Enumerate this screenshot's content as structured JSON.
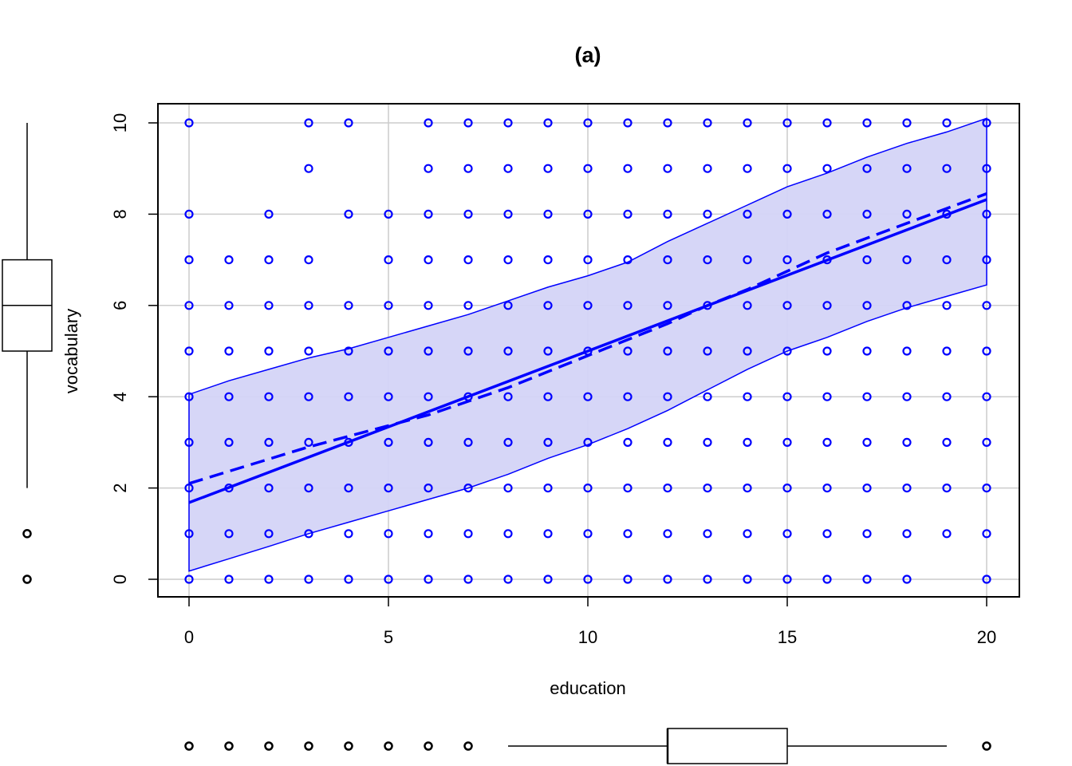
{
  "chart_data": {
    "type": "scatter",
    "title": "(a)",
    "xlabel": "education",
    "ylabel": "vocabulary",
    "xlim": [
      0,
      20
    ],
    "ylim": [
      0,
      10
    ],
    "grid": true,
    "xticks": [
      "0",
      "5",
      "10",
      "15",
      "20"
    ],
    "yticks": [
      "0",
      "2",
      "4",
      "6",
      "8",
      "10"
    ],
    "colors": {
      "points": "#0000ff",
      "band_fill": "#d4d4f7",
      "band_line": "#0000ff",
      "grid": "#cccccc",
      "axis": "#000000"
    },
    "points_by_x": [
      {
        "x": 0,
        "y": [
          0,
          1,
          2,
          3,
          4,
          5,
          6,
          7,
          8,
          10
        ]
      },
      {
        "x": 1,
        "y": [
          0,
          1,
          2,
          3,
          4,
          5,
          6,
          7
        ]
      },
      {
        "x": 2,
        "y": [
          0,
          1,
          2,
          3,
          4,
          5,
          6,
          7,
          8
        ]
      },
      {
        "x": 3,
        "y": [
          0,
          1,
          2,
          3,
          4,
          5,
          6,
          7,
          9,
          10
        ]
      },
      {
        "x": 4,
        "y": [
          0,
          1,
          2,
          3,
          4,
          5,
          6,
          8,
          10
        ]
      },
      {
        "x": 5,
        "y": [
          0,
          1,
          2,
          3,
          4,
          5,
          6,
          7,
          8
        ]
      },
      {
        "x": 6,
        "y": [
          0,
          1,
          2,
          3,
          4,
          5,
          6,
          7,
          8,
          9,
          10
        ]
      },
      {
        "x": 7,
        "y": [
          0,
          1,
          2,
          3,
          4,
          5,
          6,
          7,
          8,
          9,
          10
        ]
      },
      {
        "x": 8,
        "y": [
          0,
          1,
          2,
          3,
          4,
          5,
          6,
          7,
          8,
          9,
          10
        ]
      },
      {
        "x": 9,
        "y": [
          0,
          1,
          2,
          3,
          4,
          5,
          6,
          7,
          8,
          9,
          10
        ]
      },
      {
        "x": 10,
        "y": [
          0,
          1,
          2,
          3,
          4,
          5,
          6,
          7,
          8,
          9,
          10
        ]
      },
      {
        "x": 11,
        "y": [
          0,
          1,
          2,
          3,
          4,
          5,
          6,
          7,
          8,
          9,
          10
        ]
      },
      {
        "x": 12,
        "y": [
          0,
          1,
          2,
          3,
          4,
          5,
          6,
          7,
          8,
          9,
          10
        ]
      },
      {
        "x": 13,
        "y": [
          0,
          1,
          2,
          3,
          4,
          5,
          6,
          7,
          8,
          9,
          10
        ]
      },
      {
        "x": 14,
        "y": [
          0,
          1,
          2,
          3,
          4,
          5,
          6,
          7,
          8,
          9,
          10
        ]
      },
      {
        "x": 15,
        "y": [
          0,
          1,
          2,
          3,
          4,
          5,
          6,
          7,
          8,
          9,
          10
        ]
      },
      {
        "x": 16,
        "y": [
          0,
          1,
          2,
          3,
          4,
          5,
          6,
          7,
          8,
          9,
          10
        ]
      },
      {
        "x": 17,
        "y": [
          0,
          1,
          2,
          3,
          4,
          5,
          6,
          7,
          8,
          9,
          10
        ]
      },
      {
        "x": 18,
        "y": [
          0,
          1,
          2,
          3,
          4,
          5,
          6,
          7,
          8,
          9,
          10
        ]
      },
      {
        "x": 19,
        "y": [
          1,
          2,
          3,
          4,
          5,
          6,
          7,
          8,
          9,
          10
        ]
      },
      {
        "x": 20,
        "y": [
          0,
          1,
          2,
          3,
          4,
          5,
          6,
          7,
          8,
          9,
          10
        ]
      }
    ],
    "series": [
      {
        "name": "linear fit",
        "style": "solid",
        "x": [
          0,
          20
        ],
        "y": [
          1.68,
          8.32
        ]
      },
      {
        "name": "smooth fit",
        "style": "dashed",
        "x": [
          0,
          3,
          6,
          8,
          10,
          12,
          13,
          14,
          15,
          16,
          18,
          20
        ],
        "y": [
          2.1,
          2.9,
          3.6,
          4.2,
          4.9,
          5.6,
          6.0,
          6.35,
          6.75,
          7.15,
          7.8,
          8.45
        ]
      }
    ],
    "band": {
      "x": [
        0,
        1,
        2,
        3,
        4,
        5,
        6,
        7,
        8,
        9,
        10,
        11,
        12,
        13,
        14,
        15,
        16,
        17,
        18,
        19,
        20
      ],
      "upper": [
        4.05,
        4.35,
        4.6,
        4.85,
        5.05,
        5.3,
        5.55,
        5.8,
        6.1,
        6.4,
        6.65,
        6.95,
        7.4,
        7.8,
        8.2,
        8.6,
        8.9,
        9.25,
        9.55,
        9.8,
        10.1
      ],
      "lower": [
        0.18,
        0.45,
        0.72,
        1.0,
        1.25,
        1.5,
        1.75,
        2.0,
        2.3,
        2.65,
        2.95,
        3.3,
        3.7,
        4.15,
        4.6,
        5.0,
        5.3,
        5.65,
        5.95,
        6.2,
        6.45
      ]
    },
    "y_marginal_boxplot": {
      "min": 2,
      "q1": 5,
      "median": 6,
      "q3": 7,
      "max": 10,
      "outliers": [
        0,
        1
      ]
    },
    "x_marginal_boxplot": {
      "min": 8,
      "q1": 12,
      "median": 12,
      "q3": 15,
      "max": 19,
      "outliers": [
        0,
        1,
        2,
        3,
        4,
        5,
        6,
        7,
        20
      ]
    }
  }
}
